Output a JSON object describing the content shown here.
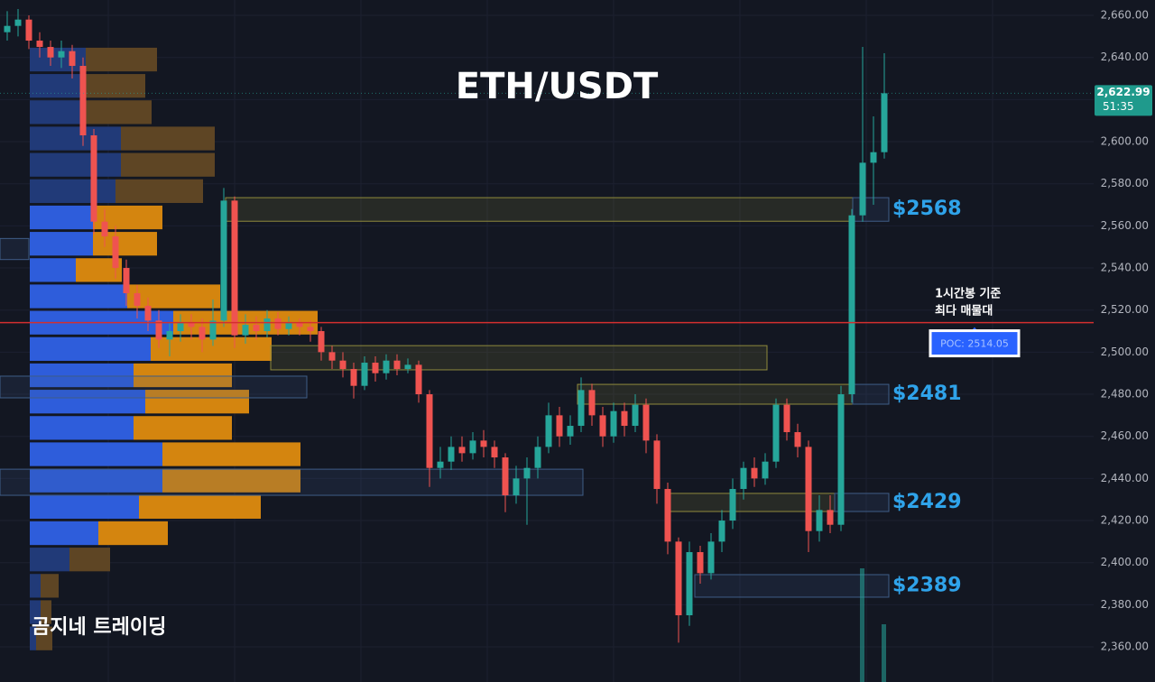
{
  "chart_data": {
    "type": "candlestick",
    "title": "ETH/USDT",
    "watermark": "곰지네 트레이딩",
    "annotation": [
      "1시간봉 기준",
      "최다 매물대"
    ],
    "up_color": "#26a69a",
    "down_color": "#ef5350",
    "ylim": [
      2343.3,
      2667.3
    ],
    "yticks": [
      {
        "value": 2360,
        "label": "2,360.00"
      },
      {
        "value": 2380,
        "label": "2,380.00"
      },
      {
        "value": 2400,
        "label": "2,400.00"
      },
      {
        "value": 2420,
        "label": "2,420.00"
      },
      {
        "value": 2440,
        "label": "2,440.00"
      },
      {
        "value": 2460,
        "label": "2,460.00"
      },
      {
        "value": 2480,
        "label": "2,480.00"
      },
      {
        "value": 2500,
        "label": "2,500.00"
      },
      {
        "value": 2520,
        "label": "2,520.00"
      },
      {
        "value": 2540,
        "label": "2,540.00"
      },
      {
        "value": 2560,
        "label": "2,560.00"
      },
      {
        "value": 2580,
        "label": "2,580.00"
      },
      {
        "value": 2600,
        "label": "2,600.00"
      },
      {
        "value": 2620,
        "label": "2,620.00"
      },
      {
        "value": 2640,
        "label": "2,640.00"
      },
      {
        "value": 2660,
        "label": "2,660.00"
      }
    ],
    "grid": true,
    "candles": {
      "open": [
        2652,
        2655,
        2658,
        2648,
        2645,
        2640,
        2643,
        2636,
        2603,
        2562,
        2555,
        2540,
        2528,
        2522,
        2515,
        2506,
        2510,
        2514,
        2512,
        2506,
        2515,
        2572,
        2508,
        2513,
        2510,
        2516,
        2511,
        2514,
        2512,
        2510,
        2500,
        2496,
        2492,
        2484,
        2495,
        2490,
        2496,
        2492,
        2494,
        2480,
        2445,
        2448,
        2455,
        2452,
        2458,
        2455,
        2450,
        2432,
        2440,
        2445,
        2455,
        2470,
        2460,
        2465,
        2482,
        2470,
        2460,
        2472,
        2465,
        2475,
        2458,
        2435,
        2410,
        2375,
        2405,
        2395,
        2410,
        2420,
        2435,
        2445,
        2440,
        2448,
        2475,
        2462,
        2455,
        2415,
        2425,
        2418,
        2480,
        2565,
        2590,
        2595
      ],
      "high": [
        2662,
        2663,
        2660,
        2652,
        2648,
        2648,
        2646,
        2640,
        2606,
        2568,
        2560,
        2544,
        2532,
        2526,
        2520,
        2514,
        2518,
        2518,
        2516,
        2525,
        2578,
        2574,
        2518,
        2517,
        2520,
        2519,
        2517,
        2516,
        2515,
        2512,
        2503,
        2500,
        2495,
        2498,
        2498,
        2499,
        2499,
        2497,
        2496,
        2482,
        2455,
        2460,
        2460,
        2462,
        2463,
        2458,
        2452,
        2446,
        2450,
        2460,
        2476,
        2474,
        2470,
        2488,
        2485,
        2474,
        2476,
        2476,
        2480,
        2478,
        2461,
        2438,
        2412,
        2410,
        2408,
        2414,
        2425,
        2440,
        2448,
        2450,
        2452,
        2478,
        2478,
        2466,
        2458,
        2432,
        2432,
        2484,
        2568,
        2645,
        2612,
        2642
      ],
      "low": [
        2648,
        2650,
        2644,
        2640,
        2636,
        2635,
        2630,
        2598,
        2556,
        2550,
        2535,
        2522,
        2516,
        2510,
        2502,
        2498,
        2505,
        2506,
        2500,
        2503,
        2512,
        2502,
        2504,
        2506,
        2507,
        2508,
        2508,
        2508,
        2505,
        2496,
        2492,
        2488,
        2478,
        2482,
        2486,
        2487,
        2489,
        2490,
        2476,
        2436,
        2440,
        2444,
        2448,
        2449,
        2450,
        2445,
        2424,
        2428,
        2418,
        2440,
        2452,
        2455,
        2456,
        2462,
        2465,
        2455,
        2457,
        2460,
        2462,
        2452,
        2428,
        2404,
        2362,
        2370,
        2390,
        2392,
        2405,
        2416,
        2430,
        2436,
        2437,
        2445,
        2458,
        2450,
        2405,
        2410,
        2414,
        2415,
        2476,
        2562,
        2570,
        2592
      ],
      "close": [
        2655,
        2658,
        2648,
        2645,
        2640,
        2643,
        2636,
        2603,
        2562,
        2555,
        2540,
        2528,
        2522,
        2515,
        2506,
        2510,
        2514,
        2512,
        2506,
        2515,
        2572,
        2508,
        2513,
        2510,
        2516,
        2511,
        2514,
        2512,
        2510,
        2500,
        2496,
        2492,
        2484,
        2495,
        2490,
        2496,
        2492,
        2494,
        2480,
        2445,
        2448,
        2455,
        2452,
        2458,
        2455,
        2450,
        2432,
        2440,
        2445,
        2455,
        2470,
        2460,
        2465,
        2482,
        2470,
        2460,
        2472,
        2465,
        2475,
        2458,
        2435,
        2410,
        2375,
        2405,
        2395,
        2410,
        2420,
        2435,
        2445,
        2440,
        2448,
        2475,
        2462,
        2455,
        2415,
        2425,
        2418,
        2480,
        2565,
        2590,
        2595,
        2623
      ]
    },
    "volume_profile": {
      "levels": [
        2639,
        2626.5,
        2614,
        2601.5,
        2589,
        2576.5,
        2564,
        2551.5,
        2539,
        2526.5,
        2514,
        2501.5,
        2489,
        2476.5,
        2464,
        2451.5,
        2439,
        2426.5,
        2414,
        2401.5,
        2389,
        2376.5,
        2364
      ],
      "bin_size": 12.5,
      "buy": [
        62,
        62,
        62,
        101,
        101,
        95,
        70,
        70,
        51,
        108,
        159,
        134,
        115,
        128,
        115,
        147,
        147,
        121,
        76,
        44,
        12,
        12,
        7
      ],
      "sell": [
        79,
        66,
        73,
        104,
        104,
        97,
        77,
        71,
        51,
        103,
        160,
        134,
        109,
        115,
        109,
        153,
        153,
        135,
        77,
        45,
        20,
        12,
        18
      ],
      "value_area": [
        2408,
        2570
      ],
      "buy_color": "#2e5ddb",
      "sell_color": "#d4850f",
      "dim_buy_color": "#213a78",
      "dim_sell_color": "#5e4524"
    },
    "zones": [
      {
        "label": "$2568",
        "low": 2562.2,
        "high": 2573.4
      },
      {
        "low": 2491.6,
        "high": 2503.1
      },
      {
        "label": "$2481",
        "low": 2475.3,
        "high": 2484.7
      },
      {
        "label": "$2429",
        "low": 2424.3,
        "high": 2432.9
      },
      {
        "label": "$2389",
        "low": 2383.6,
        "high": 2394.3
      },
      {
        "low": 2544,
        "high": 2554
      },
      {
        "low": 2478.3,
        "high": 2488.6
      },
      {
        "low": 2432,
        "high": 2444.4
      }
    ],
    "poc": {
      "value": 2514.05,
      "label": "POC: 2514.05",
      "color": "#d32f2f"
    },
    "last_price": {
      "value": 2622.99,
      "label": "2,622.99",
      "countdown": "51:35"
    },
    "volume_spikes": [
      {
        "candle": 79,
        "value": 126
      },
      {
        "candle": 81,
        "value": 64
      }
    ]
  }
}
